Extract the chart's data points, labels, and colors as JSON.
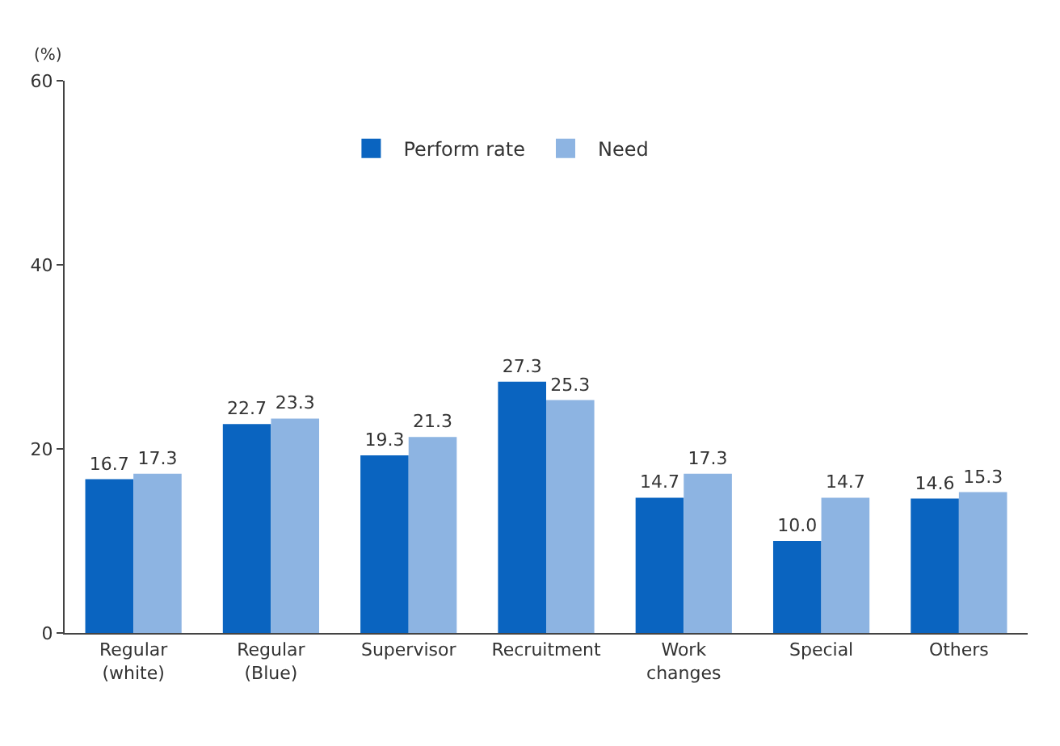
{
  "chart_data": {
    "type": "bar",
    "ylabel": "(%)",
    "categories": [
      "Regular\n(white)",
      "Regular\n(Blue)",
      "Supervisor",
      "Recruitment",
      "Work\nchanges",
      "Special",
      "Others"
    ],
    "series": [
      {
        "name": "Perform rate",
        "color": "#0a64c0",
        "values": [
          16.7,
          22.7,
          19.3,
          27.3,
          14.7,
          10.0,
          14.6
        ],
        "value_labels": [
          "16.7",
          "22.7",
          "19.3",
          "27.3",
          "14.7",
          "10.0",
          "14.6"
        ]
      },
      {
        "name": "Need",
        "color": "#8db4e2",
        "values": [
          17.3,
          23.3,
          21.3,
          25.3,
          17.3,
          14.7,
          15.3
        ],
        "value_labels": [
          "17.3",
          "23.3",
          "21.3",
          "25.3",
          "17.3",
          "14.7",
          "15.3"
        ]
      }
    ],
    "ylim": [
      0,
      60
    ],
    "yticks": [
      0,
      20,
      40,
      60
    ],
    "grid": false,
    "legend": "top"
  }
}
